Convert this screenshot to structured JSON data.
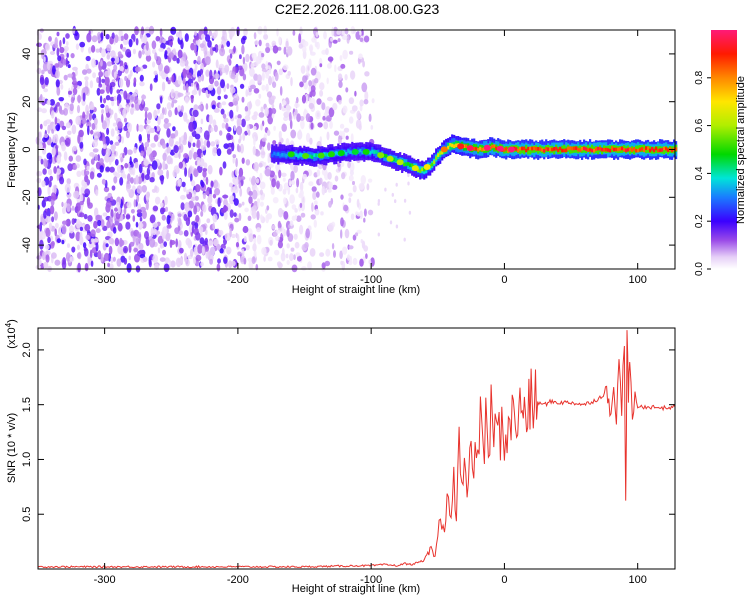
{
  "title": "C2E2.2026.111.08.00.G23",
  "chart_data": [
    {
      "type": "heatmap",
      "name": "spectrogram",
      "xlabel": "Height of straight line (km)",
      "ylabel": "Frequency (Hz)",
      "xlim": [
        -350,
        128
      ],
      "ylim": [
        -50,
        50
      ],
      "xticks": [
        -300,
        -200,
        -100,
        0,
        100
      ],
      "yticks": [
        -40,
        -20,
        0,
        20,
        40
      ],
      "colorbar": {
        "label": "Normalized spectral amplitude",
        "range": [
          0,
          1
        ],
        "ticks": [
          0.0,
          0.2,
          0.4,
          0.6,
          0.8
        ]
      },
      "noise_region": {
        "x_range": [
          -350,
          -98
        ],
        "level": 0.12
      },
      "signal_ridge": {
        "x": [
          -175,
          -160,
          -145,
          -130,
          -115,
          -100,
          -90,
          -80,
          -70,
          -62,
          -55,
          -48,
          -40,
          -30,
          -20,
          -10,
          0,
          20,
          40,
          60,
          80,
          100,
          128
        ],
        "frequency": [
          -2,
          -2,
          -3,
          -2,
          -1,
          -1,
          -3,
          -5,
          -7,
          -9,
          -6,
          -1,
          2,
          1,
          0,
          1,
          0,
          0,
          0,
          0,
          0,
          0,
          0
        ],
        "amplitude": [
          0.3,
          0.4,
          0.45,
          0.4,
          0.35,
          0.4,
          0.5,
          0.5,
          0.55,
          0.6,
          0.6,
          0.7,
          0.75,
          0.85,
          0.9,
          0.9,
          0.95,
          0.95,
          0.95,
          0.95,
          0.95,
          0.95,
          0.95
        ]
      }
    },
    {
      "type": "line",
      "name": "snr",
      "xlabel": "Height of straight line (km)",
      "ylabel": "SNR (10 * v/v)",
      "ylabel_scale": "(x10",
      "ylabel_scale_exp": "4",
      "ylabel_scale_close": ")",
      "xlim": [
        -350,
        128
      ],
      "ylim": [
        0,
        2.2
      ],
      "xticks": [
        -300,
        -200,
        -100,
        0,
        100
      ],
      "yticks": [
        0.5,
        1.0,
        1.5,
        2.0
      ],
      "ytick_labels": [
        "0.5",
        "1.0",
        "1.5",
        "2.0"
      ],
      "series": [
        {
          "name": "SNR",
          "color": "#e8332d",
          "x": [
            -350,
            -300,
            -250,
            -200,
            -150,
            -110,
            -100,
            -90,
            -80,
            -75,
            -70,
            -65,
            -60,
            -55,
            -52,
            -50,
            -47,
            -45,
            -42,
            -40,
            -38,
            -36,
            -34,
            -32,
            -30,
            -28,
            -26,
            -24,
            -22,
            -20,
            -18,
            -16,
            -14,
            -12,
            -10,
            -8,
            -6,
            -4,
            -2,
            0,
            2,
            5,
            10,
            15,
            20,
            25,
            30,
            35,
            40,
            50,
            60,
            70,
            75,
            80,
            82,
            84,
            86,
            88,
            90,
            91,
            92,
            93,
            94,
            96,
            98,
            100,
            110,
            120,
            128
          ],
          "values": [
            0.02,
            0.02,
            0.02,
            0.02,
            0.02,
            0.03,
            0.03,
            0.04,
            0.03,
            0.05,
            0.04,
            0.06,
            0.08,
            0.18,
            0.1,
            0.35,
            0.45,
            0.3,
            0.75,
            0.5,
            0.95,
            0.4,
            1.3,
            0.7,
            0.9,
            0.6,
            1.15,
            0.8,
            1.2,
            0.9,
            1.65,
            1.0,
            1.3,
            1.05,
            1.45,
            1.0,
            1.5,
            1.2,
            1.3,
            1.2,
            1.25,
            1.35,
            1.4,
            1.45,
            1.5,
            1.52,
            1.5,
            1.53,
            1.52,
            1.52,
            1.5,
            1.55,
            1.6,
            1.5,
            1.75,
            1.3,
            1.9,
            1.4,
            2.15,
            0.55,
            2.1,
            1.6,
            1.8,
            1.45,
            1.5,
            1.48,
            1.48,
            1.47,
            1.48
          ]
        }
      ]
    }
  ]
}
